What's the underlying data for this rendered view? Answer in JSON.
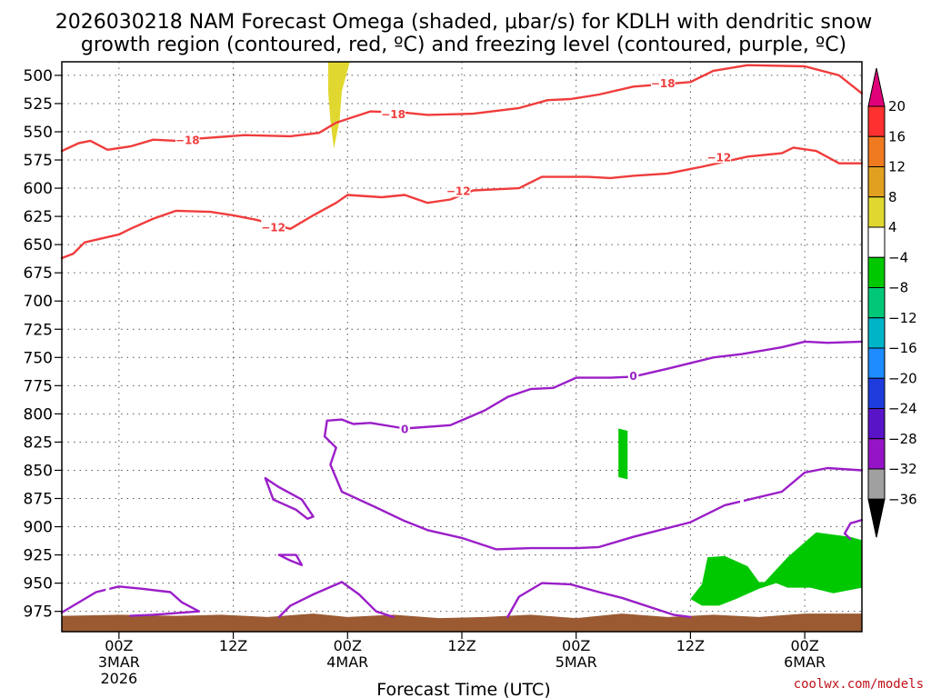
{
  "chart_data": {
    "type": "contour",
    "title_lines": [
      "2026030218 NAM Forecast Omega (shaded, μbar/s) for KDLH with dendritic snow",
      "growth region (contoured, red, ºC) and freezing level (contoured, purple, ºC)"
    ],
    "xlabel": "Forecast Time (UTC)",
    "credit": "coolwx.com/models",
    "xlim_hours": [
      -5,
      65
    ],
    "ylim_hpa": [
      488,
      993
    ],
    "y_ticks": [
      500,
      525,
      550,
      575,
      600,
      625,
      650,
      675,
      700,
      725,
      750,
      775,
      800,
      825,
      850,
      875,
      900,
      925,
      950,
      975
    ],
    "x_ticks": [
      {
        "hours": 0,
        "lines": [
          "00Z",
          "3MAR",
          "2026"
        ]
      },
      {
        "hours": 10,
        "lines": [
          "12Z"
        ]
      },
      {
        "hours": 20,
        "lines": [
          "00Z",
          "4MAR"
        ]
      },
      {
        "hours": 30,
        "lines": [
          "12Z"
        ]
      },
      {
        "hours": 40,
        "lines": [
          "00Z",
          "5MAR"
        ]
      },
      {
        "hours": 50,
        "lines": [
          "12Z"
        ]
      },
      {
        "hours": 60,
        "lines": [
          "00Z",
          "6MAR"
        ]
      }
    ],
    "grid": "dotted",
    "colorbar": {
      "ticks": [
        "20",
        "16",
        "12",
        "8",
        "4",
        "−4",
        "−8",
        "−12",
        "−16",
        "−20",
        "−24",
        "−28",
        "−32",
        "−36"
      ],
      "top_color": "#e0007a",
      "bottom_color": "#000000",
      "colors": [
        "#ff3030",
        "#f07a20",
        "#e0a020",
        "#e0d830",
        "#ffffff",
        "#00c800",
        "#00c878",
        "#00b4c8",
        "#1e8cff",
        "#1e3cdc",
        "#5a14c8",
        "#9614c8",
        "#a0a0a0"
      ]
    },
    "contours": [
      {
        "name": "minus18",
        "level": -18,
        "color": "#f03c3c",
        "label": "−18",
        "points": [
          [
            -5,
            567
          ],
          [
            -3.5,
            560
          ],
          [
            -2.5,
            558
          ],
          [
            -1,
            566
          ],
          [
            1,
            563
          ],
          [
            3,
            557
          ],
          [
            5,
            558
          ],
          [
            7,
            556
          ],
          [
            11,
            553
          ],
          [
            15,
            554
          ],
          [
            17.5,
            551
          ],
          [
            19,
            542
          ],
          [
            22,
            532
          ],
          [
            25,
            533
          ],
          [
            27,
            535
          ],
          [
            31,
            534
          ],
          [
            35,
            529
          ],
          [
            37.5,
            522
          ],
          [
            39.5,
            521
          ],
          [
            42,
            517
          ],
          [
            45,
            510
          ],
          [
            50,
            506
          ],
          [
            52,
            496
          ],
          [
            55,
            491
          ],
          [
            60,
            492
          ],
          [
            63,
            500
          ],
          [
            65,
            516
          ]
        ],
        "labels": [
          [
            6,
            557
          ],
          [
            24,
            534
          ],
          [
            47.6,
            506.5
          ]
        ]
      },
      {
        "name": "minus12",
        "level": -12,
        "color": "#f03c3c",
        "label": "−12",
        "points": [
          [
            -5,
            662
          ],
          [
            -4,
            658
          ],
          [
            -3,
            648
          ],
          [
            0,
            641
          ],
          [
            1,
            636
          ],
          [
            3,
            627
          ],
          [
            5,
            620
          ],
          [
            8,
            621
          ],
          [
            10,
            624
          ],
          [
            12,
            628
          ],
          [
            15,
            636
          ],
          [
            17,
            624
          ],
          [
            19,
            613
          ],
          [
            20,
            606
          ],
          [
            23,
            608
          ],
          [
            25,
            606
          ],
          [
            27,
            613
          ],
          [
            29,
            610
          ],
          [
            31,
            602
          ],
          [
            35,
            600
          ],
          [
            37,
            590
          ],
          [
            41,
            590
          ],
          [
            43,
            591
          ],
          [
            45,
            589
          ],
          [
            48,
            587
          ],
          [
            51,
            581
          ],
          [
            55,
            572
          ],
          [
            58,
            569
          ],
          [
            59,
            564
          ],
          [
            61,
            567
          ],
          [
            63,
            578
          ],
          [
            65,
            578
          ]
        ],
        "labels": [
          [
            13.5,
            634
          ],
          [
            29.7,
            602
          ],
          [
            52.5,
            572
          ]
        ]
      },
      {
        "name": "freezing-top",
        "level": 0,
        "color": "#9a1ec8",
        "label": "0",
        "points": [
          [
            18,
            820
          ],
          [
            18.2,
            806
          ],
          [
            19.5,
            805
          ],
          [
            20.5,
            809
          ],
          [
            22,
            808
          ],
          [
            25,
            813
          ],
          [
            29,
            810
          ],
          [
            32,
            797
          ],
          [
            34,
            785
          ],
          [
            36,
            778
          ],
          [
            38,
            777
          ],
          [
            40,
            768
          ],
          [
            43,
            768
          ],
          [
            45,
            767
          ],
          [
            48,
            760
          ],
          [
            52,
            750
          ],
          [
            54.5,
            747
          ],
          [
            58,
            741
          ],
          [
            60,
            736
          ],
          [
            62,
            737
          ],
          [
            65,
            736
          ]
        ],
        "labels": [
          [
            25,
            813
          ],
          [
            45,
            766
          ]
        ]
      },
      {
        "name": "freezing-left-loop",
        "level": 0,
        "color": "#9a1ec8",
        "points": [
          [
            18,
            820
          ],
          [
            19,
            830
          ],
          [
            18.5,
            845
          ],
          [
            19.5,
            869
          ],
          [
            22.5,
            883
          ],
          [
            25,
            895
          ],
          [
            27,
            903
          ],
          [
            30,
            910
          ],
          [
            33,
            920
          ],
          [
            36,
            919
          ],
          [
            40,
            919
          ],
          [
            42,
            918
          ],
          [
            45,
            909
          ],
          [
            50,
            896
          ],
          [
            53,
            881
          ],
          [
            58,
            869
          ],
          [
            60,
            852
          ],
          [
            62,
            848
          ],
          [
            65,
            850
          ]
        ],
        "labels": [
          [
            31,
            924
          ],
          [
            54.5,
            877
          ]
        ]
      },
      {
        "name": "freezing-loop-upper",
        "level": 0,
        "color": "#9a1ec8",
        "points": [
          [
            12.8,
            857
          ],
          [
            14,
            865
          ],
          [
            16,
            876
          ],
          [
            17,
            891
          ],
          [
            16.5,
            893
          ],
          [
            15.5,
            885
          ],
          [
            13.5,
            876
          ],
          [
            12.8,
            857
          ]
        ],
        "labels": []
      },
      {
        "name": "freezing-loop-lower",
        "level": 0,
        "color": "#9a1ec8",
        "points": [
          [
            14,
            925
          ],
          [
            15.5,
            925
          ],
          [
            16,
            934
          ],
          [
            15,
            930
          ],
          [
            14,
            925
          ]
        ],
        "labels": []
      },
      {
        "name": "freezing-bottom-left",
        "level": 0,
        "color": "#9a1ec8",
        "points": [
          [
            -5,
            976
          ],
          [
            -2,
            958
          ],
          [
            0,
            953
          ],
          [
            2,
            955
          ],
          [
            4.5,
            958
          ],
          [
            5.5,
            967
          ],
          [
            7,
            975
          ],
          [
            3,
            978
          ],
          [
            1,
            979
          ]
        ],
        "labels": [
          [
            -1,
            954
          ]
        ]
      },
      {
        "name": "freezing-bottom-mid",
        "level": 0,
        "color": "#9a1ec8",
        "points": [
          [
            14,
            980
          ],
          [
            15,
            970
          ],
          [
            17,
            960
          ],
          [
            19.5,
            949
          ],
          [
            21,
            960
          ],
          [
            22.5,
            975
          ],
          [
            24,
            980
          ]
        ],
        "labels": []
      },
      {
        "name": "freezing-bottom-right",
        "level": 0,
        "color": "#9a1ec8",
        "points": [
          [
            34,
            980
          ],
          [
            35,
            962
          ],
          [
            37,
            950
          ],
          [
            39.5,
            951
          ],
          [
            42,
            958
          ],
          [
            44,
            963
          ],
          [
            48.5,
            978
          ],
          [
            50,
            980
          ]
        ],
        "labels": []
      },
      {
        "name": "freezing-right-edge",
        "level": 0,
        "color": "#9a1ec8",
        "points": [
          [
            64,
            911
          ],
          [
            63.5,
            906
          ],
          [
            64,
            897
          ],
          [
            65,
            894
          ]
        ],
        "labels": []
      }
    ],
    "shaded": [
      {
        "name": "omega-positive",
        "level": "4 to 8",
        "color": "#e0d830",
        "points": [
          [
            18.3,
            488
          ],
          [
            20.2,
            488
          ],
          [
            19.5,
            514
          ],
          [
            19.3,
            540
          ],
          [
            18.8,
            565
          ],
          [
            18.5,
            540
          ],
          [
            18.3,
            514
          ]
        ]
      },
      {
        "name": "omega-negative-strip",
        "level": "-4 to -8",
        "color": "#00c800",
        "points": [
          [
            43.7,
            813
          ],
          [
            44.5,
            815
          ],
          [
            44.5,
            858
          ],
          [
            43.7,
            856
          ]
        ]
      },
      {
        "name": "omega-negative-blob",
        "level": "-4 to -8",
        "color": "#00c800",
        "points": [
          [
            50,
            964
          ],
          [
            51,
            951
          ],
          [
            51.5,
            927
          ],
          [
            53,
            926
          ],
          [
            55,
            935
          ],
          [
            56,
            949
          ],
          [
            56.5,
            949
          ],
          [
            58.5,
            927
          ],
          [
            61,
            905
          ],
          [
            64,
            909
          ],
          [
            65,
            912
          ],
          [
            65,
            954
          ],
          [
            62.5,
            959
          ],
          [
            60.5,
            954
          ],
          [
            58.5,
            954
          ],
          [
            57.5,
            950
          ],
          [
            56,
            955
          ],
          [
            54,
            964
          ],
          [
            52.5,
            970
          ],
          [
            51,
            970
          ]
        ]
      }
    ],
    "terrain": {
      "name": "ground",
      "color": "#9b5a32",
      "top_points": [
        [
          -5,
          979
        ],
        [
          0,
          978
        ],
        [
          5,
          979
        ],
        [
          9,
          978
        ],
        [
          13,
          980
        ],
        [
          17,
          977
        ],
        [
          20,
          980
        ],
        [
          24,
          978
        ],
        [
          28,
          981
        ],
        [
          32,
          980
        ],
        [
          36,
          978
        ],
        [
          40,
          981
        ],
        [
          44,
          977
        ],
        [
          48,
          980
        ],
        [
          52,
          978
        ],
        [
          56,
          980
        ],
        [
          60,
          977
        ],
        [
          65,
          977
        ]
      ]
    }
  }
}
